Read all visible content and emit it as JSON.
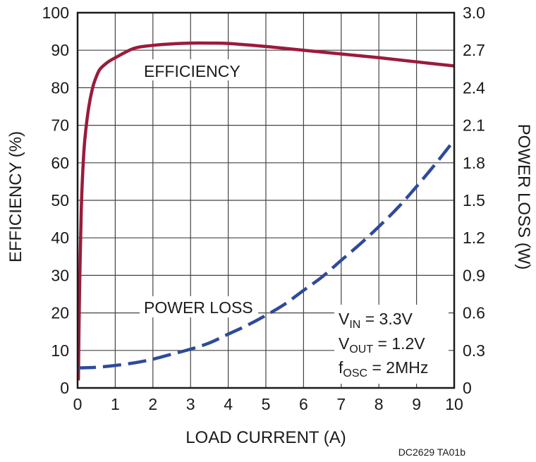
{
  "chart_data": {
    "type": "line",
    "xlabel": "LOAD CURRENT (A)",
    "ylabel": "EFFICIENCY (%)",
    "y2label": "POWER LOSS (W)",
    "xlim": [
      0,
      10
    ],
    "ylim": [
      0,
      100
    ],
    "y2lim": [
      0,
      3.0
    ],
    "xticks": [
      "0",
      "1",
      "2",
      "3",
      "4",
      "5",
      "6",
      "7",
      "8",
      "9",
      "10"
    ],
    "yticks": [
      "0",
      "10",
      "20",
      "30",
      "40",
      "50",
      "60",
      "70",
      "80",
      "90",
      "100"
    ],
    "y2ticks": [
      "0",
      "0.3",
      "0.6",
      "0.9",
      "1.2",
      "1.5",
      "1.8",
      "2.1",
      "2.4",
      "2.7",
      "3.0"
    ],
    "grid": true,
    "series": [
      {
        "name": "EFFICIENCY",
        "axis": "left",
        "color": "#9b1b3b",
        "style": "solid",
        "x": [
          0.02,
          0.05,
          0.1,
          0.15,
          0.2,
          0.3,
          0.4,
          0.5,
          0.6,
          0.8,
          1.0,
          1.5,
          2.0,
          2.5,
          3.0,
          3.5,
          4.0,
          5.0,
          6.0,
          7.0,
          8.0,
          9.0,
          10.0
        ],
        "y": [
          2,
          25,
          48,
          60,
          67,
          75,
          80,
          83,
          85,
          86.8,
          88,
          90.5,
          91.3,
          91.7,
          91.9,
          91.9,
          91.8,
          91.0,
          90.0,
          89.0,
          88.0,
          86.9,
          85.8
        ]
      },
      {
        "name": "POWER LOSS",
        "axis": "right",
        "color": "#2e4a9a",
        "style": "dashed",
        "x": [
          0,
          0.5,
          1,
          1.5,
          2,
          2.5,
          3,
          3.5,
          4,
          4.5,
          5,
          5.5,
          6,
          6.5,
          7,
          7.5,
          8,
          8.5,
          9,
          9.5,
          10
        ],
        "y": [
          0.16,
          0.165,
          0.18,
          0.2,
          0.23,
          0.27,
          0.31,
          0.36,
          0.43,
          0.5,
          0.58,
          0.67,
          0.78,
          0.89,
          1.02,
          1.15,
          1.29,
          1.44,
          1.61,
          1.79,
          1.98
        ]
      }
    ],
    "annotations": {
      "efficiency_label": "EFFICIENCY",
      "power_loss_label": "POWER LOSS",
      "vin": {
        "main": "V",
        "sub": "IN",
        "rest": " = 3.3V"
      },
      "vout": {
        "main": "V",
        "sub": "OUT",
        "rest": " = 1.2V"
      },
      "fosc": {
        "main": "f",
        "sub": "OSC",
        "rest": " = 2MHz"
      },
      "figure_code": "DC2629 TA01b"
    }
  }
}
